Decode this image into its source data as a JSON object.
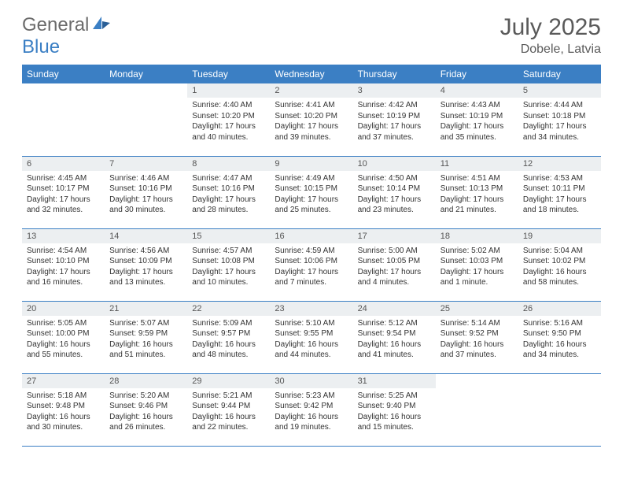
{
  "logo": {
    "text_gray": "General",
    "text_blue": "Blue"
  },
  "title": "July 2025",
  "location": "Dobele, Latvia",
  "weekdays": [
    "Sunday",
    "Monday",
    "Tuesday",
    "Wednesday",
    "Thursday",
    "Friday",
    "Saturday"
  ],
  "colors": {
    "header_bg": "#3b7fc4",
    "header_fg": "#ffffff",
    "daynum_bg": "#eceff1",
    "border": "#3b7fc4",
    "logo_gray": "#6b6b6b",
    "logo_blue": "#3b7fc4",
    "title_color": "#5a5a5a"
  },
  "weeks": [
    [
      null,
      null,
      {
        "n": "1",
        "sunrise": "4:40 AM",
        "sunset": "10:20 PM",
        "daylight": "17 hours and 40 minutes."
      },
      {
        "n": "2",
        "sunrise": "4:41 AM",
        "sunset": "10:20 PM",
        "daylight": "17 hours and 39 minutes."
      },
      {
        "n": "3",
        "sunrise": "4:42 AM",
        "sunset": "10:19 PM",
        "daylight": "17 hours and 37 minutes."
      },
      {
        "n": "4",
        "sunrise": "4:43 AM",
        "sunset": "10:19 PM",
        "daylight": "17 hours and 35 minutes."
      },
      {
        "n": "5",
        "sunrise": "4:44 AM",
        "sunset": "10:18 PM",
        "daylight": "17 hours and 34 minutes."
      }
    ],
    [
      {
        "n": "6",
        "sunrise": "4:45 AM",
        "sunset": "10:17 PM",
        "daylight": "17 hours and 32 minutes."
      },
      {
        "n": "7",
        "sunrise": "4:46 AM",
        "sunset": "10:16 PM",
        "daylight": "17 hours and 30 minutes."
      },
      {
        "n": "8",
        "sunrise": "4:47 AM",
        "sunset": "10:16 PM",
        "daylight": "17 hours and 28 minutes."
      },
      {
        "n": "9",
        "sunrise": "4:49 AM",
        "sunset": "10:15 PM",
        "daylight": "17 hours and 25 minutes."
      },
      {
        "n": "10",
        "sunrise": "4:50 AM",
        "sunset": "10:14 PM",
        "daylight": "17 hours and 23 minutes."
      },
      {
        "n": "11",
        "sunrise": "4:51 AM",
        "sunset": "10:13 PM",
        "daylight": "17 hours and 21 minutes."
      },
      {
        "n": "12",
        "sunrise": "4:53 AM",
        "sunset": "10:11 PM",
        "daylight": "17 hours and 18 minutes."
      }
    ],
    [
      {
        "n": "13",
        "sunrise": "4:54 AM",
        "sunset": "10:10 PM",
        "daylight": "17 hours and 16 minutes."
      },
      {
        "n": "14",
        "sunrise": "4:56 AM",
        "sunset": "10:09 PM",
        "daylight": "17 hours and 13 minutes."
      },
      {
        "n": "15",
        "sunrise": "4:57 AM",
        "sunset": "10:08 PM",
        "daylight": "17 hours and 10 minutes."
      },
      {
        "n": "16",
        "sunrise": "4:59 AM",
        "sunset": "10:06 PM",
        "daylight": "17 hours and 7 minutes."
      },
      {
        "n": "17",
        "sunrise": "5:00 AM",
        "sunset": "10:05 PM",
        "daylight": "17 hours and 4 minutes."
      },
      {
        "n": "18",
        "sunrise": "5:02 AM",
        "sunset": "10:03 PM",
        "daylight": "17 hours and 1 minute."
      },
      {
        "n": "19",
        "sunrise": "5:04 AM",
        "sunset": "10:02 PM",
        "daylight": "16 hours and 58 minutes."
      }
    ],
    [
      {
        "n": "20",
        "sunrise": "5:05 AM",
        "sunset": "10:00 PM",
        "daylight": "16 hours and 55 minutes."
      },
      {
        "n": "21",
        "sunrise": "5:07 AM",
        "sunset": "9:59 PM",
        "daylight": "16 hours and 51 minutes."
      },
      {
        "n": "22",
        "sunrise": "5:09 AM",
        "sunset": "9:57 PM",
        "daylight": "16 hours and 48 minutes."
      },
      {
        "n": "23",
        "sunrise": "5:10 AM",
        "sunset": "9:55 PM",
        "daylight": "16 hours and 44 minutes."
      },
      {
        "n": "24",
        "sunrise": "5:12 AM",
        "sunset": "9:54 PM",
        "daylight": "16 hours and 41 minutes."
      },
      {
        "n": "25",
        "sunrise": "5:14 AM",
        "sunset": "9:52 PM",
        "daylight": "16 hours and 37 minutes."
      },
      {
        "n": "26",
        "sunrise": "5:16 AM",
        "sunset": "9:50 PM",
        "daylight": "16 hours and 34 minutes."
      }
    ],
    [
      {
        "n": "27",
        "sunrise": "5:18 AM",
        "sunset": "9:48 PM",
        "daylight": "16 hours and 30 minutes."
      },
      {
        "n": "28",
        "sunrise": "5:20 AM",
        "sunset": "9:46 PM",
        "daylight": "16 hours and 26 minutes."
      },
      {
        "n": "29",
        "sunrise": "5:21 AM",
        "sunset": "9:44 PM",
        "daylight": "16 hours and 22 minutes."
      },
      {
        "n": "30",
        "sunrise": "5:23 AM",
        "sunset": "9:42 PM",
        "daylight": "16 hours and 19 minutes."
      },
      {
        "n": "31",
        "sunrise": "5:25 AM",
        "sunset": "9:40 PM",
        "daylight": "16 hours and 15 minutes."
      },
      null,
      null
    ]
  ],
  "labels": {
    "sunrise": "Sunrise:",
    "sunset": "Sunset:",
    "daylight": "Daylight:"
  }
}
